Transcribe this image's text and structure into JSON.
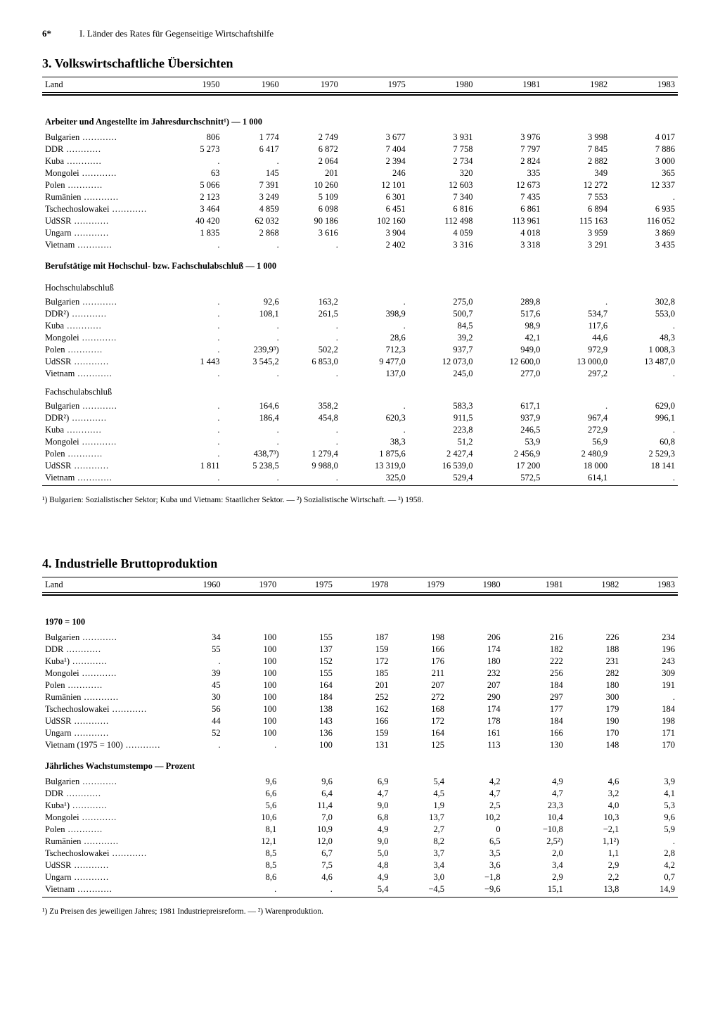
{
  "header": {
    "page_number": "6*",
    "chapter_title": "I. Länder des Rates für Gegenseitige Wirtschaftshilfe"
  },
  "section3": {
    "title": "3. Volkswirtschaftliche Übersichten",
    "col_land": "Land",
    "years": [
      "1950",
      "1960",
      "1970",
      "1975",
      "1980",
      "1981",
      "1982",
      "1983"
    ],
    "sub1": "Arbeiter und Angestellte im Jahresdurchschnitt¹) — 1 000",
    "rows1": [
      {
        "land": "Bulgarien",
        "v": [
          "806",
          "1 774",
          "2 749",
          "3 677",
          "3 931",
          "3 976",
          "3 998",
          "4 017"
        ]
      },
      {
        "land": "DDR",
        "v": [
          "5 273",
          "6 417",
          "6 872",
          "7 404",
          "7 758",
          "7 797",
          "7 845",
          "7 886"
        ]
      },
      {
        "land": "Kuba",
        "v": [
          ".",
          ".",
          "2 064",
          "2 394",
          "2 734",
          "2 824",
          "2 882",
          "3 000"
        ]
      },
      {
        "land": "Mongolei",
        "v": [
          "63",
          "145",
          "201",
          "246",
          "320",
          "335",
          "349",
          "365"
        ]
      },
      {
        "land": "Polen",
        "v": [
          "5 066",
          "7 391",
          "10 260",
          "12 101",
          "12 603",
          "12 673",
          "12 272",
          "12 337"
        ]
      },
      {
        "land": "Rumänien",
        "v": [
          "2 123",
          "3 249",
          "5 109",
          "6 301",
          "7 340",
          "7 435",
          "7 553",
          "."
        ]
      },
      {
        "land": "Tschechoslowakei",
        "v": [
          "3 464",
          "4 859",
          "6 098",
          "6 451",
          "6 816",
          "6 861",
          "6 894",
          "6 935"
        ]
      },
      {
        "land": "UdSSR",
        "v": [
          "40 420",
          "62 032",
          "90 186",
          "102 160",
          "112 498",
          "113 961",
          "115 163",
          "116 052"
        ]
      },
      {
        "land": "Ungarn",
        "v": [
          "1 835",
          "2 868",
          "3 616",
          "3 904",
          "4 059",
          "4 018",
          "3 959",
          "3 869"
        ]
      },
      {
        "land": "Vietnam",
        "v": [
          ".",
          ".",
          ".",
          "2 402",
          "3 316",
          "3 318",
          "3 291",
          "3 435"
        ]
      }
    ],
    "sub2": "Berufstätige mit Hochschul- bzw. Fachschulabschluß — 1 000",
    "sub2a": "Hochschulabschluß",
    "rows2a": [
      {
        "land": "Bulgarien",
        "v": [
          ".",
          "92,6",
          "163,2",
          ".",
          "275,0",
          "289,8",
          ".",
          "302,8"
        ]
      },
      {
        "land": "DDR²)",
        "v": [
          ".",
          "108,1",
          "261,5",
          "398,9",
          "500,7",
          "517,6",
          "534,7",
          "553,0"
        ]
      },
      {
        "land": "Kuba",
        "v": [
          ".",
          ".",
          ".",
          ".",
          "84,5",
          "98,9",
          "117,6",
          "."
        ]
      },
      {
        "land": "Mongolei",
        "v": [
          ".",
          ".",
          ".",
          "28,6",
          "39,2",
          "42,1",
          "44,6",
          "48,3"
        ]
      },
      {
        "land": "Polen",
        "v": [
          ".",
          "239,9³)",
          "502,2",
          "712,3",
          "937,7",
          "949,0",
          "972,9",
          "1 008,3"
        ]
      },
      {
        "land": "UdSSR",
        "v": [
          "1 443",
          "3 545,2",
          "6 853,0",
          "9 477,0",
          "12 073,0",
          "12 600,0",
          "13 000,0",
          "13 487,0"
        ]
      },
      {
        "land": "Vietnam",
        "v": [
          ".",
          ".",
          ".",
          "137,0",
          "245,0",
          "277,0",
          "297,2",
          "."
        ]
      }
    ],
    "sub2b": "Fachschulabschluß",
    "rows2b": [
      {
        "land": "Bulgarien",
        "v": [
          ".",
          "164,6",
          "358,2",
          ".",
          "583,3",
          "617,1",
          ".",
          "629,0"
        ]
      },
      {
        "land": "DDR²)",
        "v": [
          ".",
          "186,4",
          "454,8",
          "620,3",
          "911,5",
          "937,9",
          "967,4",
          "996,1"
        ]
      },
      {
        "land": "Kuba",
        "v": [
          ".",
          ".",
          ".",
          ".",
          "223,8",
          "246,5",
          "272,9",
          "."
        ]
      },
      {
        "land": "Mongolei",
        "v": [
          ".",
          ".",
          ".",
          "38,3",
          "51,2",
          "53,9",
          "56,9",
          "60,8"
        ]
      },
      {
        "land": "Polen",
        "v": [
          ".",
          "438,7³)",
          "1 279,4",
          "1 875,6",
          "2 427,4",
          "2 456,9",
          "2 480,9",
          "2 529,3"
        ]
      },
      {
        "land": "UdSSR",
        "v": [
          "1 811",
          "5 238,5",
          "9 988,0",
          "13 319,0",
          "16 539,0",
          "17 200",
          "18 000",
          "18 141"
        ]
      },
      {
        "land": "Vietnam",
        "v": [
          ".",
          ".",
          ".",
          "325,0",
          "529,4",
          "572,5",
          "614,1",
          "."
        ]
      }
    ],
    "footnote": "¹) Bulgarien: Sozialistischer Sektor; Kuba und Vietnam: Staatlicher Sektor. — ²) Sozialistische Wirtschaft. — ³) 1958."
  },
  "section4": {
    "title": "4. Industrielle Bruttoproduktion",
    "col_land": "Land",
    "years": [
      "1960",
      "1970",
      "1975",
      "1978",
      "1979",
      "1980",
      "1981",
      "1982",
      "1983"
    ],
    "sub1": "1970 = 100",
    "rows1": [
      {
        "land": "Bulgarien",
        "v": [
          "34",
          "100",
          "155",
          "187",
          "198",
          "206",
          "216",
          "226",
          "234"
        ]
      },
      {
        "land": "DDR",
        "v": [
          "55",
          "100",
          "137",
          "159",
          "166",
          "174",
          "182",
          "188",
          "196"
        ]
      },
      {
        "land": "Kuba¹)",
        "v": [
          ".",
          "100",
          "152",
          "172",
          "176",
          "180",
          "222",
          "231",
          "243"
        ]
      },
      {
        "land": "Mongolei",
        "v": [
          "39",
          "100",
          "155",
          "185",
          "211",
          "232",
          "256",
          "282",
          "309"
        ]
      },
      {
        "land": "Polen",
        "v": [
          "45",
          "100",
          "164",
          "201",
          "207",
          "207",
          "184",
          "180",
          "191"
        ]
      },
      {
        "land": "Rumänien",
        "v": [
          "30",
          "100",
          "184",
          "252",
          "272",
          "290",
          "297",
          "300",
          "."
        ]
      },
      {
        "land": "Tschechoslowakei",
        "v": [
          "56",
          "100",
          "138",
          "162",
          "168",
          "174",
          "177",
          "179",
          "184"
        ]
      },
      {
        "land": "UdSSR",
        "v": [
          "44",
          "100",
          "143",
          "166",
          "172",
          "178",
          "184",
          "190",
          "198"
        ]
      },
      {
        "land": "Ungarn",
        "v": [
          "52",
          "100",
          "136",
          "159",
          "164",
          "161",
          "166",
          "170",
          "171"
        ]
      },
      {
        "land": "Vietnam (1975 = 100)",
        "v": [
          ".",
          ".",
          "100",
          "131",
          "125",
          "113",
          "130",
          "148",
          "170"
        ]
      }
    ],
    "sub2": "Jährliches Wachstumstempo — Prozent",
    "rows2": [
      {
        "land": "Bulgarien",
        "v": [
          "",
          "9,6",
          "9,6",
          "6,9",
          "5,4",
          "4,2",
          "4,9",
          "4,6",
          "3,9"
        ]
      },
      {
        "land": "DDR",
        "v": [
          "",
          "6,6",
          "6,4",
          "4,7",
          "4,5",
          "4,7",
          "4,7",
          "3,2",
          "4,1"
        ]
      },
      {
        "land": "Kuba¹)",
        "v": [
          "",
          "5,6",
          "11,4",
          "9,0",
          "1,9",
          "2,5",
          "23,3",
          "4,0",
          "5,3"
        ]
      },
      {
        "land": "Mongolei",
        "v": [
          "",
          "10,6",
          "7,0",
          "6,8",
          "13,7",
          "10,2",
          "10,4",
          "10,3",
          "9,6"
        ]
      },
      {
        "land": "Polen",
        "v": [
          "",
          "8,1",
          "10,9",
          "4,9",
          "2,7",
          "0",
          "−10,8",
          "−2,1",
          "5,9"
        ]
      },
      {
        "land": "Rumänien",
        "v": [
          "",
          "12,1",
          "12,0",
          "9,0",
          "8,2",
          "6,5",
          "2,5²)",
          "1,1²)",
          "."
        ]
      },
      {
        "land": "Tschechoslowakei",
        "v": [
          "",
          "8,5",
          "6,7",
          "5,0",
          "3,7",
          "3,5",
          "2,0",
          "1,1",
          "2,8"
        ]
      },
      {
        "land": "UdSSR",
        "v": [
          "",
          "8,5",
          "7,5",
          "4,8",
          "3,4",
          "3,6",
          "3,4",
          "2,9",
          "4,2"
        ]
      },
      {
        "land": "Ungarn",
        "v": [
          "",
          "8,6",
          "4,6",
          "4,9",
          "3,0",
          "−1,8",
          "2,9",
          "2,2",
          "0,7"
        ]
      },
      {
        "land": "Vietnam",
        "v": [
          "",
          ".",
          ".",
          "5,4",
          "−4,5",
          "−9,6",
          "15,1",
          "13,8",
          "14,9"
        ]
      }
    ],
    "footnote": "¹) Zu Preisen des jeweiligen Jahres; 1981 Industriepreisreform. — ²) Warenproduktion."
  }
}
